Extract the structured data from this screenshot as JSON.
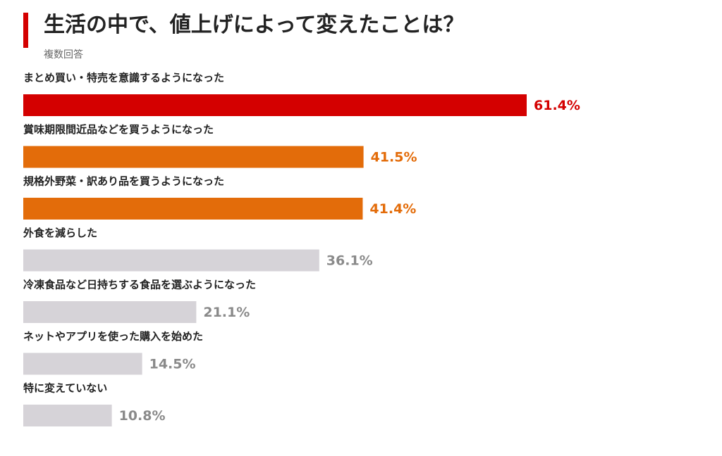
{
  "title": "生活の中で、値上げによって変えたことは？",
  "subtitle": "複数回答",
  "colors": {
    "accent": "#d40000",
    "highlight": "#e36c0a",
    "muted_bar": "#d6d3d8",
    "muted_text": "#8a8a8a"
  },
  "chart_data": {
    "type": "bar",
    "orientation": "horizontal",
    "title": "生活の中で、値上げによって変えたことは？",
    "subtitle": "複数回答",
    "categories": [
      "まとめ買い・特売を意識するようになった",
      "賞味期限間近品などを買うようになった",
      "規格外野菜・訳あり品を買うようになった",
      "外食を減らした",
      "冷凍食品など日持ちする食品を選ぶようになった",
      "ネットやアプリを使った購入を始めた",
      "特に変えていない"
    ],
    "values": [
      61.4,
      41.5,
      41.4,
      36.1,
      21.1,
      14.5,
      10.8
    ],
    "value_labels": [
      "61.4%",
      "41.5%",
      "41.4%",
      "36.1%",
      "21.1%",
      "14.5%",
      "10.8%"
    ],
    "bar_colors": [
      "#d40000",
      "#e36c0a",
      "#e36c0a",
      "#d6d3d8",
      "#d6d3d8",
      "#d6d3d8",
      "#d6d3d8"
    ],
    "label_colors": [
      "#d40000",
      "#e36c0a",
      "#e36c0a",
      "#8a8a8a",
      "#8a8a8a",
      "#8a8a8a",
      "#8a8a8a"
    ],
    "unit": "%",
    "xlim": [
      0,
      100
    ],
    "grid": false,
    "legend": "none"
  }
}
